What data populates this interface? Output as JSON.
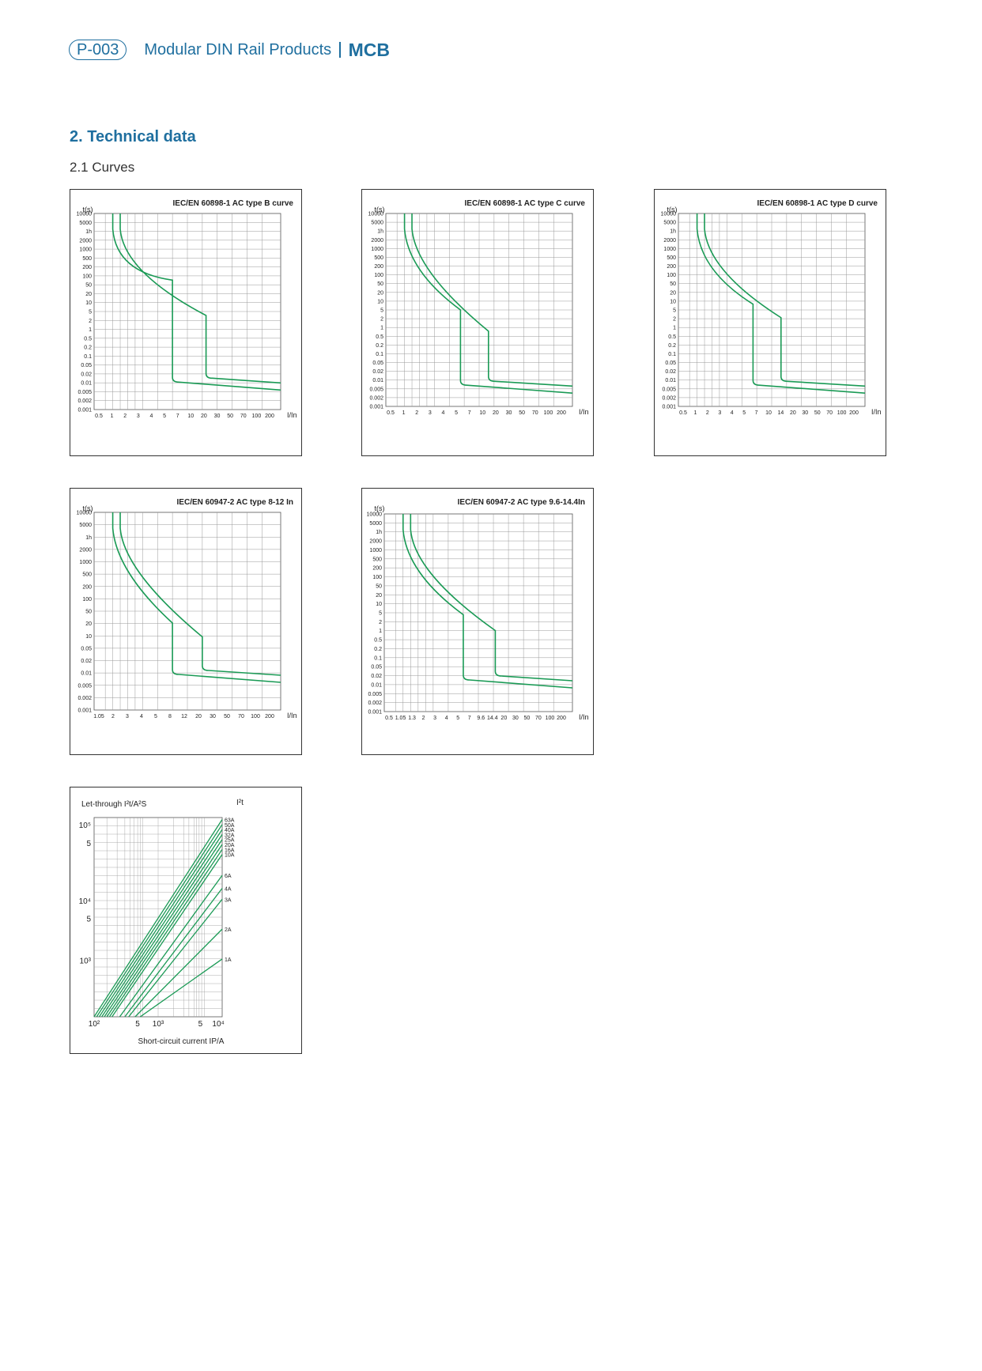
{
  "header": {
    "page_badge": "P-003",
    "title": "Modular DIN Rail Products",
    "product": "MCB"
  },
  "section": {
    "title": "2. Technical data",
    "subtitle": "2.1 Curves"
  },
  "colors": {
    "accent": "#1f6f9f",
    "curve": "#1a9a55",
    "grid": "#999999"
  },
  "charts": [
    {
      "id": "b",
      "title": "IEC/EN 60898-1 AC type B curve",
      "ylabel": "t(s)",
      "xlabel": "I/In",
      "yticks": [
        "10000",
        "5000",
        "1h",
        "2000",
        "1000",
        "500",
        "200",
        "100",
        "50",
        "20",
        "10",
        "5",
        "2",
        "1",
        "0.5",
        "0.2",
        "0.1",
        "0.05",
        "0.02",
        "0.01",
        "0.005",
        "0.002",
        "0.001"
      ],
      "xticks": [
        "0.5",
        "1",
        "2",
        "3",
        "4",
        "5",
        "7",
        "10",
        "20",
        "30",
        "50",
        "70",
        "100",
        "200"
      ]
    },
    {
      "id": "c",
      "title": "IEC/EN 60898-1 AC type C curve",
      "ylabel": "t(s)",
      "xlabel": "I/In",
      "yticks": [
        "10000",
        "5000",
        "1h",
        "2000",
        "1000",
        "500",
        "200",
        "100",
        "50",
        "20",
        "10",
        "5",
        "2",
        "1",
        "0.5",
        "0.2",
        "0.1",
        "0.05",
        "0.02",
        "0.01",
        "0.005",
        "0.002",
        "0.001"
      ],
      "xticks": [
        "0.5",
        "1",
        "2",
        "3",
        "4",
        "5",
        "7",
        "10",
        "20",
        "30",
        "50",
        "70",
        "100",
        "200"
      ]
    },
    {
      "id": "d",
      "title": "IEC/EN 60898-1 AC type D curve",
      "ylabel": "t(s)",
      "xlabel": "I/In",
      "yticks": [
        "10000",
        "5000",
        "1h",
        "2000",
        "1000",
        "500",
        "200",
        "100",
        "50",
        "20",
        "10",
        "5",
        "2",
        "1",
        "0.5",
        "0.2",
        "0.1",
        "0.05",
        "0.02",
        "0.01",
        "0.005",
        "0.002",
        "0.001"
      ],
      "xticks": [
        "0.5",
        "1",
        "2",
        "3",
        "4",
        "5",
        "7",
        "10",
        "14",
        "20",
        "30",
        "50",
        "70",
        "100",
        "200"
      ]
    },
    {
      "id": "e",
      "title": "IEC/EN 60947-2 AC type 8-12 In",
      "ylabel": "t(s)",
      "xlabel": "I/In",
      "yticks": [
        "10000",
        "5000",
        "1h",
        "2000",
        "1000",
        "500",
        "200",
        "100",
        "50",
        "20",
        "10",
        "0.05",
        "0.02",
        "0.01",
        "0.005",
        "0.002",
        "0.001"
      ],
      "xticks": [
        "1.05",
        "2",
        "3",
        "4",
        "5",
        "8",
        "12",
        "20",
        "30",
        "50",
        "70",
        "100",
        "200"
      ]
    },
    {
      "id": "f",
      "title": "IEC/EN 60947-2 AC type 9.6-14.4In",
      "ylabel": "t(s)",
      "xlabel": "I/In",
      "yticks": [
        "10000",
        "5000",
        "1h",
        "2000",
        "1000",
        "500",
        "200",
        "100",
        "50",
        "20",
        "10",
        "5",
        "2",
        "1",
        "0.5",
        "0.2",
        "0.1",
        "0.05",
        "0.02",
        "0.01",
        "0.005",
        "0.002",
        "0.001"
      ],
      "xticks": [
        "0.5",
        "1.05",
        "1.3",
        "2",
        "3",
        "4",
        "5",
        "7",
        "9.6",
        "14.4",
        "20",
        "30",
        "50",
        "70",
        "100",
        "200"
      ]
    }
  ],
  "letthrough": {
    "title": "Let-through I²t/A²S",
    "corner": "I²t",
    "xlabel": "Short-circuit current IP/A",
    "yticks": [
      "10⁵",
      "5",
      "10⁴",
      "5",
      "10³"
    ],
    "xticks": [
      "10²",
      "5",
      "10³",
      "5",
      "10⁴"
    ],
    "series": [
      "63A",
      "50A",
      "40A",
      "32A",
      "25A",
      "20A",
      "16A",
      "10A",
      "6A",
      "4A",
      "3A",
      "2A",
      "1A"
    ]
  }
}
